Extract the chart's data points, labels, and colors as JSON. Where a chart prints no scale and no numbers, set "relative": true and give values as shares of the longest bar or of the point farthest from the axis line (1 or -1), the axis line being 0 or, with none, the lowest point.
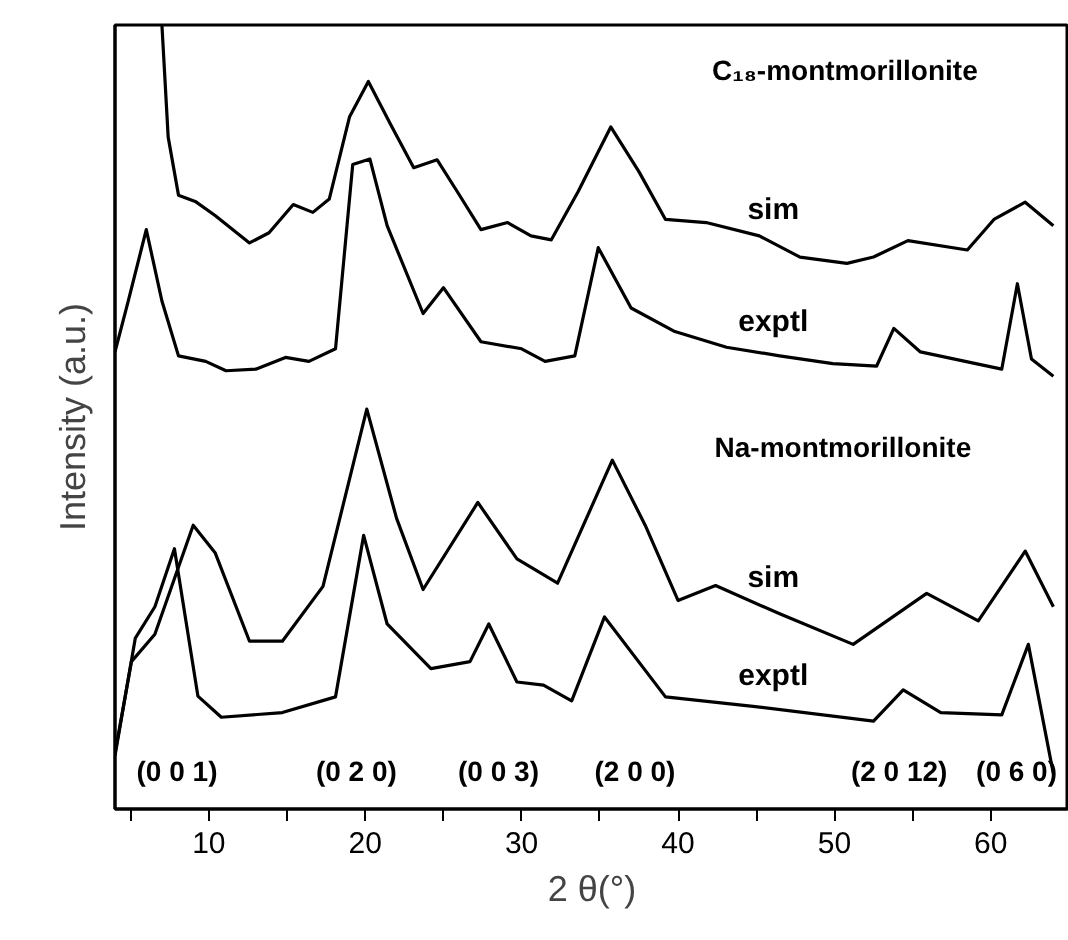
{
  "chart_data": {
    "type": "line",
    "relative": true,
    "xlabel": "2 θ(°)",
    "ylabel": "Intensity (a.u.)",
    "xlim": [
      4,
      65
    ],
    "xticks": [
      {
        "value": 5,
        "label": null
      },
      10,
      {
        "value": 15,
        "label": null
      },
      20,
      {
        "value": 25,
        "label": null
      },
      30,
      {
        "value": 35,
        "label": null
      },
      40,
      {
        "value": 45,
        "label": null
      },
      50,
      {
        "value": 55,
        "label": null
      },
      60
    ],
    "grid": false,
    "legend": false,
    "marker": "none",
    "line_style": "solid",
    "series": [
      {
        "name": "sim",
        "color": "#000000",
        "x": [
          7.0,
          7.4,
          8.06,
          9.13,
          10.4,
          12.6,
          13.85,
          15.4,
          16.65,
          17.7,
          19.0,
          20.2,
          21.6,
          23.1,
          24.6,
          25.9,
          27.4,
          29.1,
          30.6,
          31.9,
          33.6,
          35.7,
          37.5,
          39.2,
          41.8,
          45.2,
          47.8,
          50.8,
          52.5,
          54.7,
          58.5,
          60.2,
          62.2,
          64.0
        ],
        "values": [
          1.0,
          0.857,
          0.783,
          0.775,
          0.757,
          0.722,
          0.735,
          0.771,
          0.761,
          0.778,
          0.883,
          0.928,
          0.874,
          0.818,
          0.828,
          0.787,
          0.739,
          0.748,
          0.731,
          0.726,
          0.787,
          0.87,
          0.813,
          0.752,
          0.748,
          0.731,
          0.704,
          0.696,
          0.704,
          0.725,
          0.713,
          0.752,
          0.774,
          0.744
        ]
      },
      {
        "name": "exptl",
        "color": "#000000",
        "x": [
          4.0,
          4.85,
          6.0,
          7.0,
          8.06,
          9.8,
          11.1,
          13.0,
          14.9,
          16.4,
          18.1,
          19.2,
          20.3,
          21.4,
          23.7,
          25.0,
          27.4,
          30.0,
          31.5,
          33.4,
          34.9,
          37.0,
          39.8,
          43.1,
          46.5,
          49.9,
          52.7,
          53.8,
          55.5,
          60.7,
          61.7,
          62.6,
          64.0
        ],
        "values": [
          0.583,
          0.648,
          0.739,
          0.648,
          0.578,
          0.571,
          0.559,
          0.561,
          0.576,
          0.571,
          0.587,
          0.822,
          0.829,
          0.744,
          0.632,
          0.665,
          0.596,
          0.587,
          0.571,
          0.578,
          0.716,
          0.639,
          0.609,
          0.589,
          0.578,
          0.568,
          0.565,
          0.613,
          0.583,
          0.561,
          0.67,
          0.574,
          0.552
        ]
      },
      {
        "name": "sim",
        "color": "#000000",
        "x": [
          4.0,
          5.05,
          6.55,
          9.0,
          10.4,
          12.6,
          14.7,
          17.3,
          20.1,
          22.0,
          23.7,
          27.2,
          29.7,
          32.3,
          35.8,
          37.9,
          40.0,
          42.4,
          46.5,
          51.2,
          55.9,
          59.2,
          62.2,
          64.0
        ],
        "values": [
          0.071,
          0.188,
          0.223,
          0.362,
          0.327,
          0.214,
          0.214,
          0.284,
          0.51,
          0.371,
          0.28,
          0.391,
          0.319,
          0.288,
          0.445,
          0.362,
          0.266,
          0.285,
          0.249,
          0.21,
          0.275,
          0.24,
          0.329,
          0.258
        ]
      },
      {
        "name": "exptl",
        "color": "#000000",
        "x": [
          4.0,
          5.3,
          6.55,
          7.8,
          9.3,
          10.8,
          14.7,
          18.1,
          19.9,
          21.4,
          24.2,
          26.7,
          27.9,
          29.7,
          31.4,
          33.2,
          35.3,
          39.2,
          44.8,
          52.5,
          54.4,
          56.8,
          60.7,
          62.4,
          64.0
        ],
        "values": [
          0.068,
          0.218,
          0.258,
          0.332,
          0.144,
          0.117,
          0.123,
          0.143,
          0.349,
          0.236,
          0.179,
          0.188,
          0.236,
          0.162,
          0.158,
          0.138,
          0.245,
          0.143,
          0.131,
          0.112,
          0.152,
          0.123,
          0.12,
          0.21,
          0.045
        ]
      }
    ],
    "annotations": [
      "C₁₈-montmorillonite",
      "Na-montmorillonite",
      "(0 0 1)",
      "(0 2 0)",
      "(0 0 3)",
      "(2 0 0)",
      "(2 0 12)",
      "(0 6 0)"
    ]
  }
}
